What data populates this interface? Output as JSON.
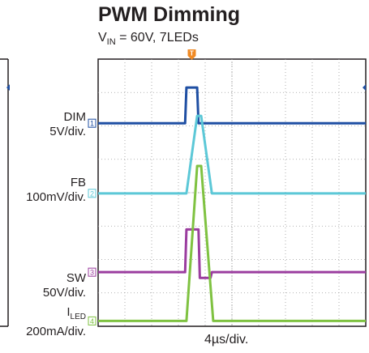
{
  "title": "PWM Dimming",
  "subtitle": {
    "prefix": "V",
    "sub": "IN",
    "suffix": " = 60V, 7LEDs"
  },
  "chart_data": {
    "type": "line",
    "title": "PWM Dimming",
    "subtitle": "VIN = 60V, 7LEDs",
    "xlabel": "4µs/div.",
    "xlim": [
      0,
      10
    ],
    "ylim": [
      0,
      8
    ],
    "grid": true,
    "trigger_marker": "T",
    "series": [
      {
        "name": "DIM",
        "scale": "5V/div.",
        "channel": "1",
        "color": "#1f4fa3",
        "x": [
          0,
          3.25,
          3.3,
          3.7,
          3.75,
          10
        ],
        "y": [
          6.08,
          6.08,
          7.15,
          7.15,
          6.08,
          6.08
        ]
      },
      {
        "name": "FB",
        "scale": "100mV/div.",
        "channel": "2",
        "color": "#5cc8d7",
        "x": [
          0,
          3.3,
          3.7,
          3.85,
          4.25,
          10
        ],
        "y": [
          3.98,
          3.98,
          6.3,
          6.3,
          3.98,
          3.98
        ]
      },
      {
        "name": "SW",
        "scale": "50V/div.",
        "channel": "3",
        "color": "#9b3d9f",
        "x": [
          0,
          3.25,
          3.3,
          3.75,
          3.8,
          4.2,
          4.25,
          10
        ],
        "y": [
          1.62,
          1.62,
          2.9,
          2.9,
          1.45,
          1.45,
          1.62,
          1.62
        ]
      },
      {
        "name": "LED",
        "scale": "200mA/div.",
        "channel": "4",
        "color": "#7fc241",
        "x": [
          0,
          3.3,
          3.7,
          3.85,
          4.3,
          10
        ],
        "y": [
          0.16,
          0.16,
          4.8,
          4.8,
          0.16,
          0.16
        ]
      }
    ]
  },
  "labels": {
    "dim": {
      "name": "DIM",
      "scale": "5V/div."
    },
    "fb": {
      "name": "FB",
      "scale": "100mV/div."
    },
    "sw": {
      "name": "SW",
      "scale": "50V/div."
    },
    "iled": {
      "name": "I",
      "sub": "LED",
      "scale": "200mA/div."
    }
  }
}
